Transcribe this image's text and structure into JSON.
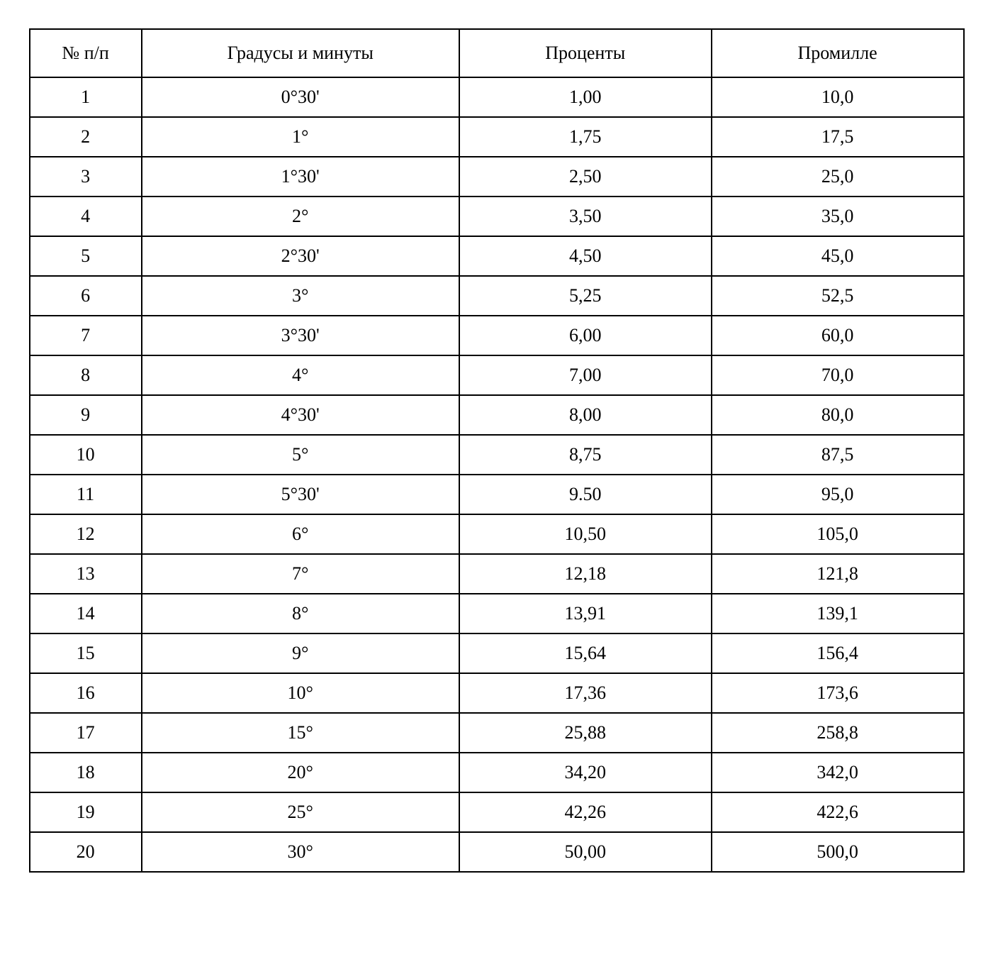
{
  "table": {
    "type": "table",
    "background_color": "#ffffff",
    "border_color": "#000000",
    "border_width": 2,
    "font_family": "Times New Roman",
    "header_fontsize": 26,
    "cell_fontsize": 26,
    "text_color": "#000000",
    "columns": [
      {
        "key": "num",
        "label": "№ п/п",
        "width_pct": 12,
        "align": "center"
      },
      {
        "key": "degrees",
        "label": "Градусы и минуты",
        "width_pct": 34,
        "align": "center"
      },
      {
        "key": "percent",
        "label": "Проценты",
        "width_pct": 27,
        "align": "center"
      },
      {
        "key": "permille",
        "label": "Промилле",
        "width_pct": 27,
        "align": "center"
      }
    ],
    "rows": [
      {
        "num": "1",
        "degrees": "0°30'",
        "percent": "1,00",
        "permille": "10,0"
      },
      {
        "num": "2",
        "degrees": "1°",
        "percent": "1,75",
        "permille": "17,5"
      },
      {
        "num": "3",
        "degrees": "1°30'",
        "percent": "2,50",
        "permille": "25,0"
      },
      {
        "num": "4",
        "degrees": "2°",
        "percent": "3,50",
        "permille": "35,0"
      },
      {
        "num": "5",
        "degrees": "2°30'",
        "percent": "4,50",
        "permille": "45,0"
      },
      {
        "num": "6",
        "degrees": "3°",
        "percent": "5,25",
        "permille": "52,5"
      },
      {
        "num": "7",
        "degrees": "3°30'",
        "percent": "6,00",
        "permille": "60,0"
      },
      {
        "num": "8",
        "degrees": "4°",
        "percent": "7,00",
        "permille": "70,0"
      },
      {
        "num": "9",
        "degrees": "4°30'",
        "percent": "8,00",
        "permille": "80,0"
      },
      {
        "num": "10",
        "degrees": "5°",
        "percent": "8,75",
        "permille": "87,5"
      },
      {
        "num": "11",
        "degrees": "5°30'",
        "percent": "9.50",
        "permille": "95,0"
      },
      {
        "num": "12",
        "degrees": "6°",
        "percent": "10,50",
        "permille": "105,0"
      },
      {
        "num": "13",
        "degrees": "7°",
        "percent": "12,18",
        "permille": "121,8"
      },
      {
        "num": "14",
        "degrees": "8°",
        "percent": "13,91",
        "permille": "139,1"
      },
      {
        "num": "15",
        "degrees": "9°",
        "percent": "15,64",
        "permille": "156,4"
      },
      {
        "num": "16",
        "degrees": "10°",
        "percent": "17,36",
        "permille": "173,6"
      },
      {
        "num": "17",
        "degrees": "15°",
        "percent": "25,88",
        "permille": "258,8"
      },
      {
        "num": "18",
        "degrees": "20°",
        "percent": "34,20",
        "permille": "342,0"
      },
      {
        "num": "19",
        "degrees": "25°",
        "percent": "42,26",
        "permille": "422,6"
      },
      {
        "num": "20",
        "degrees": "30°",
        "percent": "50,00",
        "permille": "500,0"
      }
    ]
  }
}
